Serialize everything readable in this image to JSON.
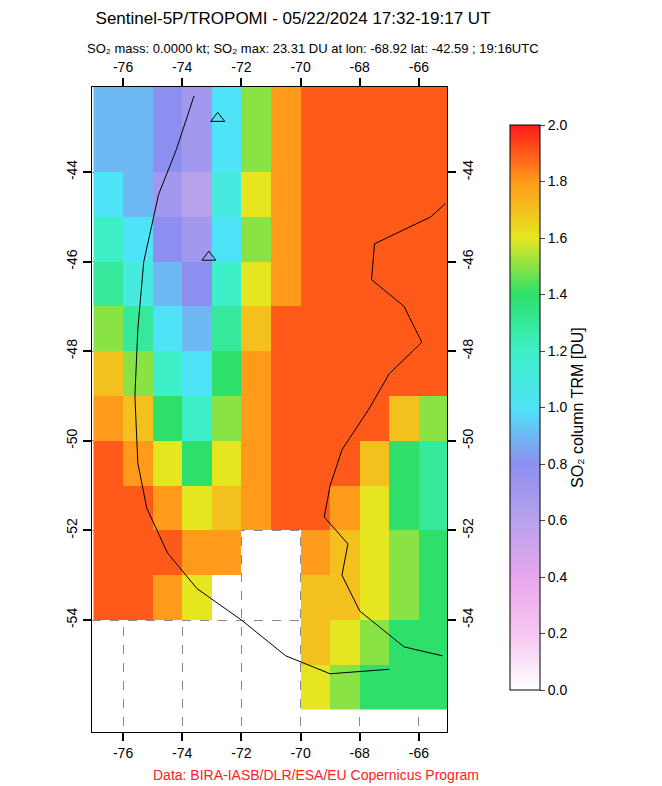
{
  "chart_data": {
    "type": "map",
    "title": "Sentinel-5P/TROPOMI - 05/22/2024 17:32-19:17 UT",
    "subtitle": "SO₂ mass: 0.0000 kt; SO₂ max: 23.31 DU at lon: -68.92 lat: -42.59 ; 19:16UTC",
    "annotations": [
      {
        "text": "Data: BIRA-IASB/DLR/ESA/EU Copernicus Program",
        "color": "#ff2020"
      }
    ],
    "xlim": [
      -77.05,
      -65.05
    ],
    "ylim": [
      -56.5,
      -42.1
    ],
    "xticks": [
      -76,
      -74,
      -72,
      -70,
      -68,
      -66
    ],
    "yticks": [
      -54,
      -52,
      -50,
      -48,
      -46,
      -44
    ],
    "grid": true,
    "cells": {
      "x": [
        -76.5,
        -75.5,
        -74.5,
        -73.5,
        -72.5,
        -71.5,
        -70.5,
        -69.5,
        -68.5,
        -67.5,
        -66.5,
        -65.5
      ],
      "y": [
        -42.5,
        -43.5,
        -44.5,
        -45.5,
        -46.5,
        -47.5,
        -48.5,
        -49.5,
        -50.5,
        -51.5,
        -52.5,
        -53.5,
        -54.5,
        -55.5
      ],
      "z": [
        [
          0.9,
          0.9,
          0.8,
          0.7,
          1.0,
          1.5,
          1.8,
          1.9,
          1.9,
          1.9,
          1.9,
          1.9
        ],
        [
          0.9,
          0.9,
          0.8,
          0.7,
          1.0,
          1.5,
          1.8,
          1.9,
          1.9,
          1.9,
          1.9,
          1.9
        ],
        [
          1.0,
          0.9,
          0.7,
          0.6,
          1.1,
          1.6,
          1.8,
          1.9,
          1.9,
          1.9,
          1.9,
          1.9
        ],
        [
          1.2,
          1.0,
          0.8,
          0.7,
          1.0,
          1.5,
          1.8,
          1.9,
          1.9,
          1.9,
          1.9,
          1.9
        ],
        [
          1.3,
          1.1,
          0.9,
          0.8,
          1.2,
          1.6,
          1.8,
          1.9,
          1.9,
          1.9,
          1.9,
          1.9
        ],
        [
          1.5,
          1.3,
          1.0,
          0.9,
          1.3,
          1.7,
          1.9,
          1.9,
          1.9,
          1.9,
          1.9,
          1.9
        ],
        [
          1.7,
          1.5,
          1.2,
          1.0,
          1.4,
          1.8,
          1.9,
          1.9,
          1.9,
          1.9,
          1.9,
          1.9
        ],
        [
          1.8,
          1.7,
          1.4,
          1.2,
          1.5,
          1.8,
          1.9,
          1.9,
          1.9,
          1.9,
          1.7,
          1.5
        ],
        [
          1.9,
          1.8,
          1.6,
          1.4,
          1.6,
          1.8,
          1.9,
          1.9,
          1.9,
          1.7,
          1.4,
          1.3
        ],
        [
          1.9,
          1.9,
          1.8,
          1.6,
          1.7,
          1.8,
          1.9,
          1.9,
          1.8,
          1.6,
          1.4,
          1.3
        ],
        [
          1.9,
          1.9,
          1.9,
          1.8,
          1.8,
          null,
          null,
          1.8,
          1.7,
          1.6,
          1.5,
          1.4
        ],
        [
          1.9,
          1.9,
          1.8,
          1.6,
          null,
          null,
          null,
          1.7,
          1.7,
          1.6,
          1.5,
          1.4
        ],
        [
          null,
          null,
          null,
          null,
          null,
          null,
          null,
          1.7,
          1.6,
          1.5,
          1.4,
          1.4
        ],
        [
          null,
          null,
          null,
          null,
          null,
          null,
          null,
          1.6,
          1.5,
          1.4,
          1.4,
          1.4
        ]
      ]
    },
    "colorbar": {
      "title": "SO₂ column TRM [DU]",
      "range": [
        0,
        2
      ],
      "ticks": [
        {
          "value": 0,
          "label": "0.0"
        },
        {
          "value": 0.2,
          "label": "0.2"
        },
        {
          "value": 0.4,
          "label": "0.4"
        },
        {
          "value": 0.6,
          "label": "0.6"
        },
        {
          "value": 0.8,
          "label": "0.8"
        },
        {
          "value": 1,
          "label": "1.0"
        },
        {
          "value": 1.2,
          "label": "1.2"
        },
        {
          "value": 1.4,
          "label": "1.4"
        },
        {
          "value": 1.6,
          "label": "1.6"
        },
        {
          "value": 1.8,
          "label": "1.8"
        },
        {
          "value": 2,
          "label": "2.0"
        }
      ]
    },
    "series": [
      {
        "type": "line",
        "color": "#000000",
        "x": [
          -73.6,
          -74.2,
          -74.8,
          -75.3,
          -75.5,
          -75.6,
          -75.5,
          -75.2,
          -74.5,
          -73.5,
          -72.0,
          -70.5,
          -69.0,
          -67.0
        ],
        "y": [
          -42.3,
          -43.5,
          -44.5,
          -46.0,
          -47.5,
          -49.0,
          -50.5,
          -51.5,
          -52.5,
          -53.3,
          -54.0,
          -54.8,
          -55.2,
          -55.1
        ]
      },
      {
        "type": "line",
        "color": "#000000",
        "x": [
          -65.1,
          -65.6,
          -67.5,
          -67.6,
          -66.5,
          -65.9,
          -67.0,
          -67.7,
          -68.6,
          -69.0,
          -69.2,
          -68.4,
          -68.6,
          -68.0,
          -66.5,
          -65.2
        ],
        "y": [
          -44.7,
          -45.0,
          -45.6,
          -46.4,
          -47.0,
          -47.8,
          -48.5,
          -49.3,
          -50.2,
          -51.0,
          -51.7,
          -52.3,
          -53.0,
          -53.8,
          -54.6,
          -54.8
        ]
      },
      {
        "type": "scatter",
        "color": "#000000",
        "marker": "triangle-up-open",
        "x": [
          -72.8,
          -73.1
        ],
        "y": [
          -42.8,
          -45.9
        ]
      }
    ]
  }
}
